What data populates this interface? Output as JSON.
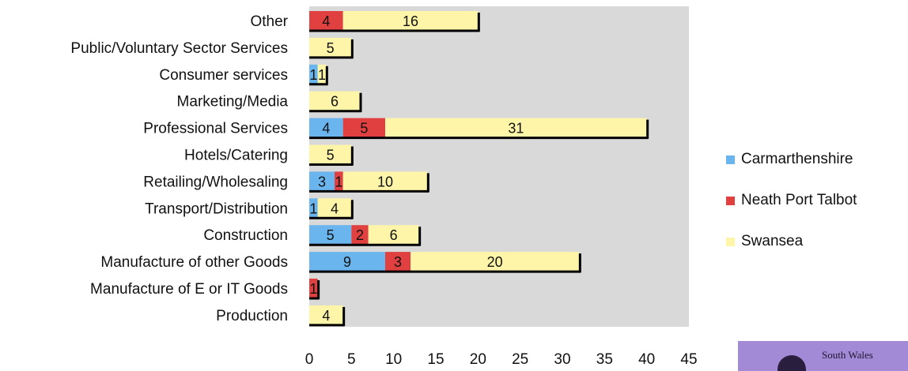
{
  "chart_data": {
    "type": "bar",
    "orientation": "horizontal",
    "stacked": true,
    "categories": [
      "Other",
      "Public/Voluntary Sector Services",
      "Consumer services",
      "Marketing/Media",
      "Professional Services",
      "Hotels/Catering",
      "Retailing/Wholesaling",
      "Transport/Distribution",
      "Construction",
      "Manufacture of other Goods",
      "Manufacture of E or IT Goods",
      "Production"
    ],
    "series": [
      {
        "name": "Carmarthenshire",
        "color": "#6bb5ee",
        "values": [
          0,
          0,
          1,
          0,
          4,
          0,
          3,
          1,
          5,
          9,
          0,
          0
        ]
      },
      {
        "name": "Neath Port Talbot",
        "color": "#e04040",
        "values": [
          4,
          0,
          0,
          0,
          5,
          0,
          1,
          0,
          2,
          3,
          1,
          0
        ]
      },
      {
        "name": "Swansea",
        "color": "#fff5a8",
        "values": [
          16,
          5,
          1,
          6,
          31,
          5,
          10,
          4,
          6,
          20,
          0,
          4
        ]
      }
    ],
    "xlim": [
      0,
      45
    ],
    "xticks": [
      0,
      5,
      10,
      15,
      20,
      25,
      30,
      35,
      40,
      45
    ],
    "title": "",
    "xlabel": "",
    "ylabel": "",
    "legend_position": "right",
    "plot_background": "#d9d9d9",
    "grid": false
  },
  "logo": {
    "text": "South Wales"
  }
}
